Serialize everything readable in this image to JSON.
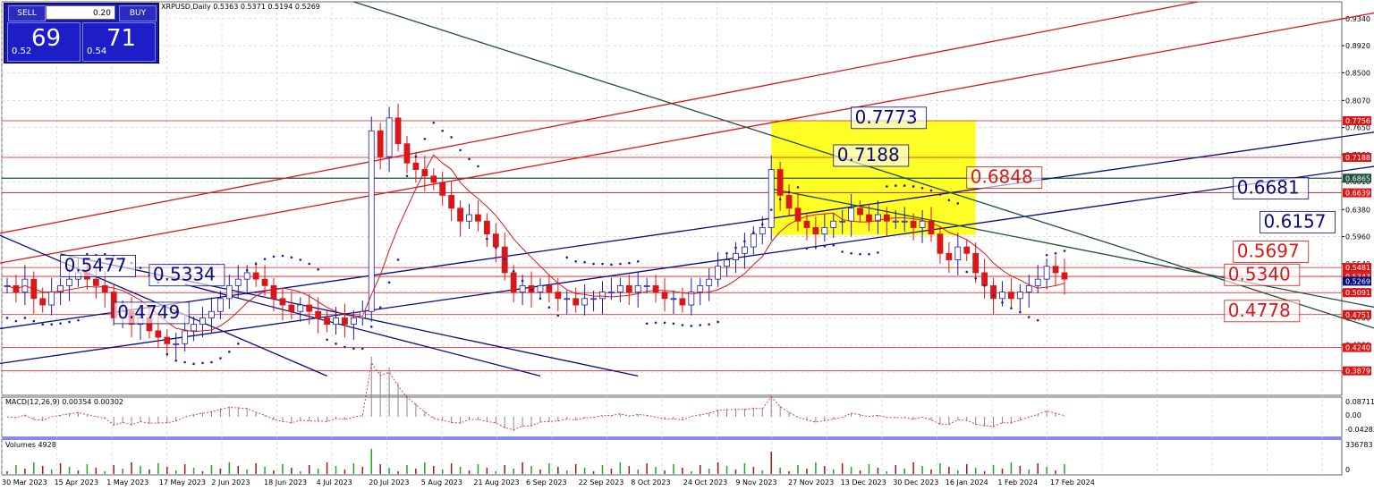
{
  "chart_header": "XRPUSD,Daily  0.5363 0.5371 0.5194 0.5269",
  "trade_panel": {
    "sell_label": "SELL",
    "buy_label": "BUY",
    "volume": "0.20",
    "sell_price_small": "0.52",
    "sell_price_big": "69",
    "buy_price_small": "0.54",
    "buy_price_big": "71"
  },
  "colors": {
    "up": "#1c1caa",
    "down": "#d81818",
    "navy": "#0a0a80",
    "green": "#1f4f3f",
    "highlight": "#ffff00"
  },
  "chart_data": {
    "type": "candlestick",
    "symbol": "XRPUSD",
    "timeframe": "Daily",
    "ohlc_last": {
      "open": 0.5363,
      "high": 0.5371,
      "low": 0.5194,
      "close": 0.5269
    },
    "ylim": [
      0.35,
      0.96
    ],
    "price_ticks": [
      "0.9340",
      "0.8920",
      "0.8500",
      "0.8070",
      "0.7650",
      "0.7230",
      "0.6810",
      "0.6380",
      "0.5960",
      "0.5540",
      "0.5120",
      "0.4700",
      "0.4280",
      "0.3860"
    ],
    "highlighted_price_labels": [
      {
        "value": "0.7756",
        "color": "red"
      },
      {
        "value": "0.7188",
        "color": "red"
      },
      {
        "value": "0.6865",
        "color": "green"
      },
      {
        "value": "0.6639",
        "color": "red"
      },
      {
        "value": "0.5481",
        "color": "red"
      },
      {
        "value": "0.5343",
        "color": "red"
      },
      {
        "value": "0.5269",
        "color": "navy"
      },
      {
        "value": "0.5091",
        "color": "red"
      },
      {
        "value": "0.4751",
        "color": "red"
      },
      {
        "value": "0.4240",
        "color": "red"
      },
      {
        "value": "0.3879",
        "color": "red"
      }
    ],
    "horizontal_levels": [
      0.7756,
      0.7188,
      0.6865,
      0.6639,
      0.5481,
      0.5343,
      0.5091,
      0.4751,
      0.424,
      0.3879
    ],
    "annotations": [
      {
        "text": "0.7773",
        "color": "navy",
        "day": 95,
        "price": 0.7773
      },
      {
        "text": "0.7188",
        "color": "navy",
        "day": 93,
        "price": 0.7188
      },
      {
        "text": "0.6848",
        "color": "red",
        "day": 108,
        "price": 0.6848
      },
      {
        "text": "0.6681",
        "color": "navy",
        "day": 138,
        "price": 0.6681
      },
      {
        "text": "0.6157",
        "color": "navy",
        "day": 141,
        "price": 0.6157
      },
      {
        "text": "0.5697",
        "color": "red",
        "day": 138,
        "price": 0.5697
      },
      {
        "text": "0.5477",
        "color": "navy",
        "day": 6,
        "price": 0.5477
      },
      {
        "text": "0.5334",
        "color": "navy",
        "day": 16,
        "price": 0.5334
      },
      {
        "text": "0.5340",
        "color": "red",
        "day": 137,
        "price": 0.534
      },
      {
        "text": "0.4749",
        "color": "navy",
        "day": 12,
        "price": 0.4749
      },
      {
        "text": "0.4778",
        "color": "red",
        "day": 137,
        "price": 0.4778
      }
    ],
    "zone": {
      "day_from": 86,
      "day_to": 109,
      "price_from": 0.5985,
      "price_to": 0.7756
    },
    "x_labels": [
      "30 Mar 2023",
      "15 Apr 2023",
      "1 May 2023",
      "17 May 2023",
      "2 Jun 2023",
      "18 Jun 2023",
      "4 Jul 2023",
      "20 Jul 2023",
      "5 Aug 2023",
      "21 Aug 2023",
      "6 Sep 2023",
      "22 Sep 2023",
      "8 Oct 2023",
      "24 Oct 2023",
      "9 Nov 2023",
      "27 Nov 2023",
      "13 Dec 2023",
      "30 Dec 2023",
      "16 Jan 2024",
      "1 Feb 2024",
      "17 Feb 2024"
    ],
    "close_series": [
      0.52,
      0.51,
      0.53,
      0.5,
      0.49,
      0.51,
      0.52,
      0.53,
      0.54,
      0.53,
      0.52,
      0.51,
      0.47,
      0.48,
      0.46,
      0.47,
      0.45,
      0.44,
      0.43,
      0.43,
      0.45,
      0.46,
      0.47,
      0.48,
      0.5,
      0.52,
      0.53,
      0.54,
      0.53,
      0.52,
      0.5,
      0.49,
      0.48,
      0.49,
      0.48,
      0.47,
      0.46,
      0.47,
      0.46,
      0.47,
      0.48,
      0.76,
      0.72,
      0.78,
      0.74,
      0.71,
      0.7,
      0.69,
      0.68,
      0.66,
      0.64,
      0.62,
      0.63,
      0.62,
      0.6,
      0.58,
      0.54,
      0.51,
      0.52,
      0.51,
      0.52,
      0.51,
      0.5,
      0.5,
      0.49,
      0.5,
      0.5,
      0.51,
      0.51,
      0.52,
      0.51,
      0.52,
      0.52,
      0.51,
      0.5,
      0.5,
      0.49,
      0.51,
      0.52,
      0.53,
      0.55,
      0.56,
      0.57,
      0.58,
      0.6,
      0.61,
      0.7,
      0.66,
      0.64,
      0.62,
      0.61,
      0.6,
      0.61,
      0.62,
      0.62,
      0.64,
      0.63,
      0.62,
      0.63,
      0.62,
      0.62,
      0.62,
      0.61,
      0.62,
      0.6,
      0.57,
      0.56,
      0.58,
      0.57,
      0.54,
      0.52,
      0.5,
      0.51,
      0.5,
      0.51,
      0.52,
      0.53,
      0.55,
      0.54,
      0.53
    ],
    "series": [
      {
        "name": "MACD(12,26,9)",
        "values_summary": "0.00354 0.00302"
      },
      {
        "name": "Volumes",
        "values_summary": "4928"
      }
    ],
    "macd_header": "MACD(12,26,9) 0.00354 0.00302",
    "macd_ticks": [
      "0.08711",
      "0.00",
      "-0.04283"
    ],
    "volume_header": "Volumes 4928",
    "volume_ticks": [
      "336783",
      "0"
    ],
    "grid": true
  }
}
